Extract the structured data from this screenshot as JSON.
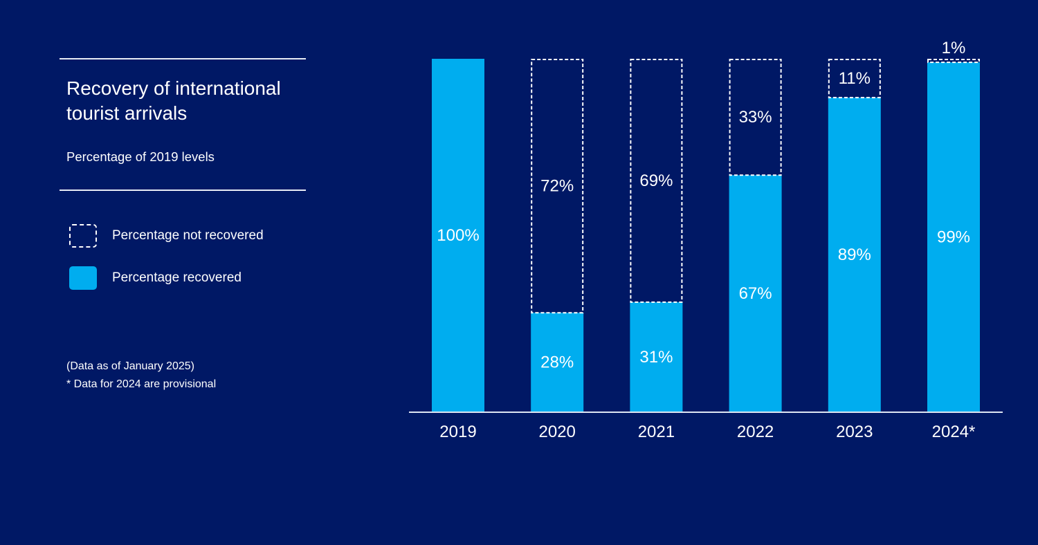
{
  "panel": {
    "title": "Recovery of international tourist arrivals",
    "subtitle": "Percentage of 2019 levels",
    "legend": [
      {
        "label": "Percentage not recovered",
        "style": "dashed"
      },
      {
        "label": "Percentage recovered",
        "style": "solid"
      }
    ],
    "notes": [
      "(Data as of January 2025)",
      "* Data for 2024 are provisional"
    ]
  },
  "colors": {
    "background": "#001865",
    "recovered": "#00adef",
    "not_recovered_outline": "#ffffff",
    "text": "#ffffff"
  },
  "chart_data": {
    "type": "bar",
    "stacked": true,
    "title": "Recovery of international tourist arrivals",
    "subtitle": "Percentage of 2019 levels",
    "xlabel": "",
    "ylabel": "",
    "ylim": [
      0,
      100
    ],
    "grid": false,
    "legend_position": "left",
    "categories": [
      "2019",
      "2020",
      "2021",
      "2022",
      "2023",
      "2024*"
    ],
    "series": [
      {
        "name": "Percentage recovered",
        "values": [
          100,
          28,
          31,
          67,
          89,
          99
        ],
        "labels": [
          "100%",
          "28%",
          "31%",
          "67%",
          "89%",
          "99%"
        ]
      },
      {
        "name": "Percentage not recovered",
        "values": [
          0,
          72,
          69,
          33,
          11,
          1
        ],
        "labels": [
          "",
          "72%",
          "69%",
          "33%",
          "11%",
          "1%"
        ]
      }
    ]
  }
}
